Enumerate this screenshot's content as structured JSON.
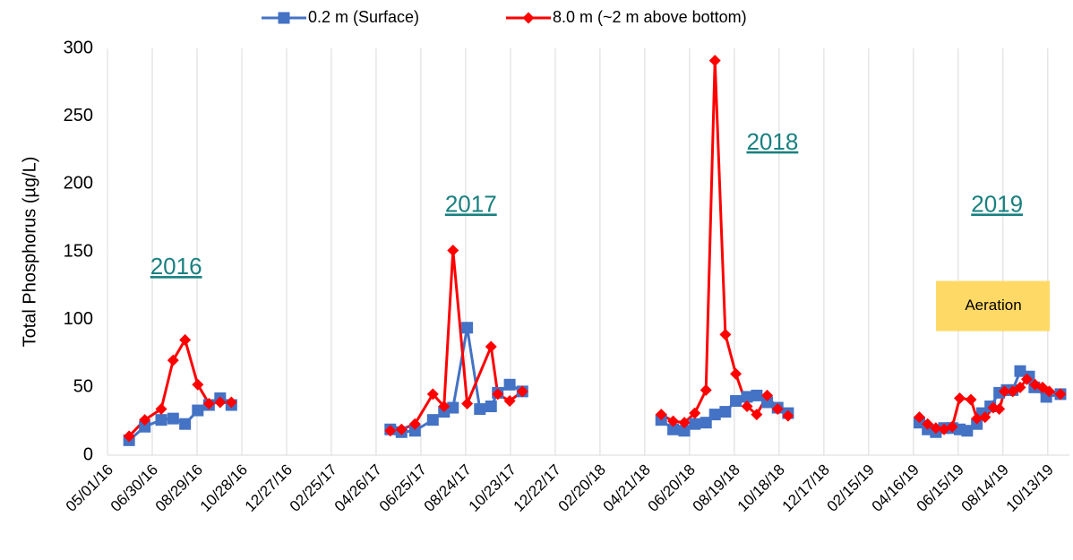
{
  "chart_data": {
    "type": "line",
    "y_label": "Total Phosphorus (µg/L)",
    "xlim": [
      "05/01/16",
      "11/11/19"
    ],
    "xticks": [
      "05/01/16",
      "06/30/16",
      "08/29/16",
      "10/28/16",
      "12/27/16",
      "02/25/17",
      "04/26/17",
      "06/25/17",
      "08/24/17",
      "10/23/17",
      "12/22/17",
      "02/20/18",
      "04/21/18",
      "06/20/18",
      "08/19/18",
      "10/18/18",
      "12/17/18",
      "02/15/19",
      "04/16/19",
      "06/15/19",
      "08/14/19",
      "10/13/19"
    ],
    "ylim": [
      0,
      300
    ],
    "yticks": [
      0,
      50,
      100,
      150,
      200,
      250,
      300
    ],
    "grid": "x",
    "legend": "top",
    "annotations": [
      {
        "text": "2016",
        "x": "08/01/16",
        "y": 138
      },
      {
        "text": "2017",
        "x": "08/31/17",
        "y": 184
      },
      {
        "text": "2018",
        "x": "10/09/18",
        "y": 230
      },
      {
        "text": "2019",
        "x": "08/06/19",
        "y": 184
      },
      {
        "text": "Aeration",
        "x": "08/01/19",
        "y": 110
      }
    ],
    "series": [
      {
        "name": "0.2 m (Surface)",
        "color": "#4472c4",
        "marker": "square",
        "x": [
          "05/30/16",
          "06/20/16",
          "07/12/16",
          "07/28/16",
          "08/13/16",
          "08/30/16",
          "09/14/16",
          "09/29/16",
          "10/14/16",
          null,
          "05/15/17",
          "05/30/17",
          "06/17/17",
          "07/11/17",
          "07/26/17",
          "08/07/17",
          "08/26/17",
          "09/12/17",
          "09/27/17",
          "10/06/17",
          "10/22/17",
          "11/08/17",
          null,
          "05/13/18",
          "05/29/18",
          "06/13/18",
          "06/27/18",
          "07/12/18",
          "07/24/18",
          "08/07/18",
          "08/21/18",
          "09/05/18",
          "09/18/18",
          "10/02/18",
          "10/16/18",
          "10/30/18",
          null,
          "04/24/19",
          "05/05/19",
          "05/16/19",
          "05/27/19",
          "06/07/19",
          "06/17/19",
          "06/27/19",
          "07/10/19",
          "07/17/19",
          "07/28/19",
          "08/09/19",
          "08/19/19",
          "08/27/19",
          "09/06/19",
          "09/18/19",
          "09/25/19",
          "10/11/19",
          "10/30/19"
        ],
        "values": [
          11,
          21,
          26,
          27,
          23,
          33,
          37,
          42,
          37,
          null,
          19,
          17,
          18,
          26,
          32,
          35,
          94,
          34,
          36,
          46,
          52,
          47,
          null,
          26,
          19,
          18,
          23,
          24,
          30,
          32,
          40,
          43,
          44,
          39,
          35,
          31,
          null,
          24,
          19,
          17,
          20,
          20,
          19,
          18,
          23,
          31,
          36,
          46,
          48,
          48,
          62,
          58,
          50,
          43,
          45
        ]
      },
      {
        "name": "8.0 m (~2 m above bottom)",
        "color": "#ff0000",
        "marker": "diamond",
        "x": [
          "05/30/16",
          "06/20/16",
          "07/12/16",
          "07/28/16",
          "08/13/16",
          "08/30/16",
          "09/14/16",
          "09/29/16",
          "10/14/16",
          null,
          "05/15/17",
          "05/30/17",
          "06/17/17",
          "07/11/17",
          "07/26/17",
          "08/07/17",
          "08/26/17",
          "09/27/17",
          "10/06/17",
          "10/22/17",
          "11/08/17",
          null,
          "05/13/18",
          "05/29/18",
          "06/13/18",
          "06/27/18",
          "07/12/18",
          "07/24/18",
          "08/07/18",
          "08/21/18",
          "09/05/18",
          "09/18/18",
          "10/02/18",
          "10/16/18",
          "10/30/18",
          null,
          "04/24/19",
          "05/05/19",
          "05/16/19",
          "05/27/19",
          "06/07/19",
          "06/17/19",
          "07/02/19",
          "07/10/19",
          "07/21/19",
          "08/01/19",
          "08/09/19",
          "08/16/19",
          "08/27/19",
          "09/06/19",
          "09/15/19",
          "09/26/19",
          "10/06/19",
          "10/15/19",
          "10/30/19"
        ],
        "values": [
          14,
          26,
          34,
          70,
          85,
          52,
          38,
          39,
          39,
          null,
          18,
          19,
          23,
          45,
          36,
          151,
          38,
          80,
          45,
          40,
          47,
          null,
          30,
          25,
          24,
          31,
          48,
          291,
          89,
          60,
          36,
          30,
          44,
          34,
          29,
          null,
          28,
          23,
          20,
          19,
          21,
          42,
          41,
          27,
          28,
          35,
          34,
          47,
          47,
          50,
          56,
          52,
          50,
          47,
          45
        ]
      }
    ]
  }
}
